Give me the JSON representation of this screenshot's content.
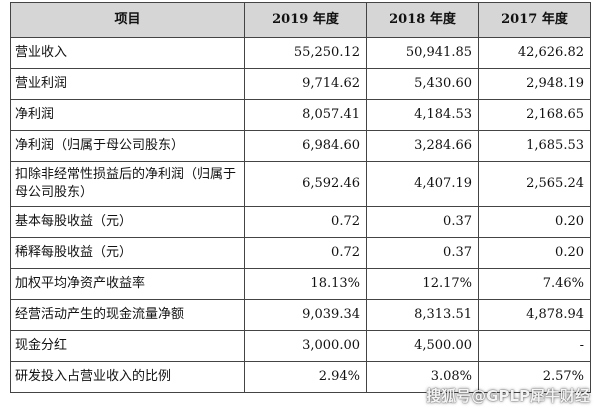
{
  "table": {
    "headers": [
      "项目",
      "2019 年度",
      "2018 年度",
      "2017 年度"
    ],
    "rows": [
      {
        "label": "营业收入",
        "y2019": "55,250.12",
        "y2018": "50,941.85",
        "y2017": "42,626.82"
      },
      {
        "label": "营业利润",
        "y2019": "9,714.62",
        "y2018": "5,430.60",
        "y2017": "2,948.19"
      },
      {
        "label": "净利润",
        "y2019": "8,057.41",
        "y2018": "4,184.53",
        "y2017": "2,168.65"
      },
      {
        "label": "净利润（归属于母公司股东）",
        "y2019": "6,984.60",
        "y2018": "3,284.66",
        "y2017": "1,685.53"
      },
      {
        "label": "扣除非经常性损益后的净利润（归属于母公司股东）",
        "y2019": "6,592.46",
        "y2018": "4,407.19",
        "y2017": "2,565.24"
      },
      {
        "label": "基本每股收益（元）",
        "y2019": "0.72",
        "y2018": "0.37",
        "y2017": "0.20"
      },
      {
        "label": "稀释每股收益（元）",
        "y2019": "0.72",
        "y2018": "0.37",
        "y2017": "0.20"
      },
      {
        "label": "加权平均净资产收益率",
        "y2019": "18.13%",
        "y2018": "12.17%",
        "y2017": "7.46%"
      },
      {
        "label": "经营活动产生的现金流量净额",
        "y2019": "9,039.34",
        "y2018": "8,313.51",
        "y2017": "4,878.94"
      },
      {
        "label": "现金分红",
        "y2019": "3,000.00",
        "y2018": "4,500.00",
        "y2017": "-"
      },
      {
        "label": "研发投入占营业收入的比例",
        "y2019": "2.94%",
        "y2018": "3.08%",
        "y2017": "2.57%"
      }
    ]
  },
  "watermark": "搜狐号@GPLP犀牛财经"
}
